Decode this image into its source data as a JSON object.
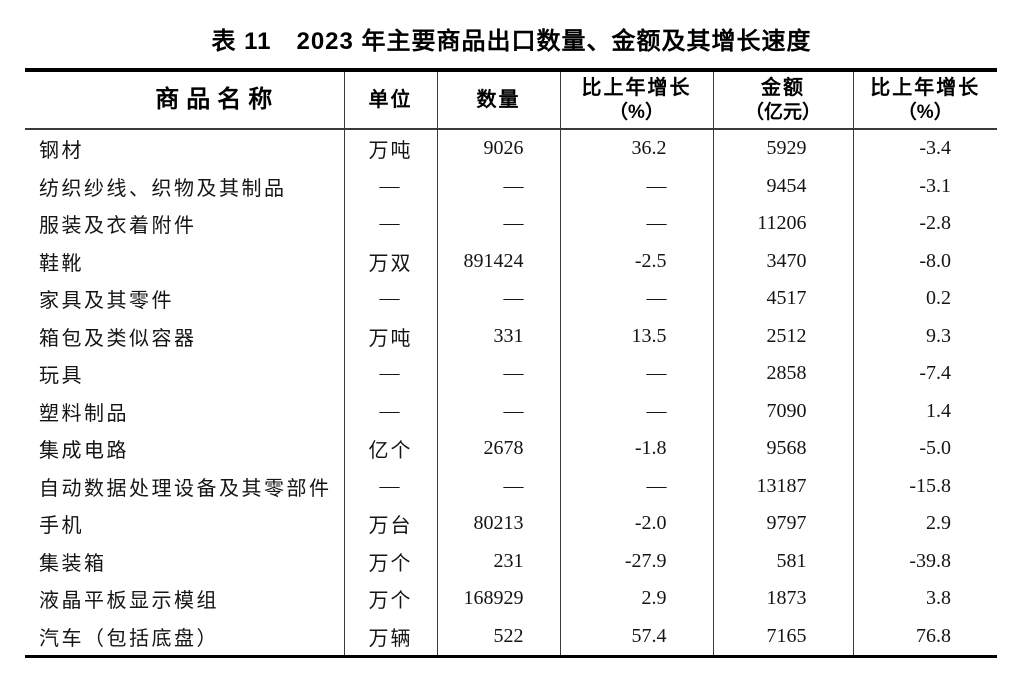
{
  "page": {
    "title": "表 11　2023 年主要商品出口数量、金额及其增长速度"
  },
  "colors": {
    "text": "#151515",
    "heavy_rule": "#000000",
    "light_rule": "#3a3a3a",
    "background": "#ffffff"
  },
  "table": {
    "placeholder": "—",
    "columns": [
      {
        "label": "商品名称"
      },
      {
        "label": "单位"
      },
      {
        "label": "数量"
      },
      {
        "label": "比上年增长",
        "sub": "（%）"
      },
      {
        "label": "金额",
        "sub": "（亿元）"
      },
      {
        "label": "比上年增长",
        "sub": "（%）"
      }
    ],
    "rows": [
      {
        "name": "钢材",
        "unit": "万吨",
        "quantity": "9026",
        "quantity_growth": "36.2",
        "amount": "5929",
        "amount_growth": "-3.4"
      },
      {
        "name": "纺织纱线、织物及其制品",
        "unit": "—",
        "quantity": "—",
        "quantity_growth": "—",
        "amount": "9454",
        "amount_growth": "-3.1"
      },
      {
        "name": "服装及衣着附件",
        "unit": "—",
        "quantity": "—",
        "quantity_growth": "—",
        "amount": "11206",
        "amount_growth": "-2.8"
      },
      {
        "name": "鞋靴",
        "unit": "万双",
        "quantity": "891424",
        "quantity_growth": "-2.5",
        "amount": "3470",
        "amount_growth": "-8.0"
      },
      {
        "name": "家具及其零件",
        "unit": "—",
        "quantity": "—",
        "quantity_growth": "—",
        "amount": "4517",
        "amount_growth": "0.2"
      },
      {
        "name": "箱包及类似容器",
        "unit": "万吨",
        "quantity": "331",
        "quantity_growth": "13.5",
        "amount": "2512",
        "amount_growth": "9.3"
      },
      {
        "name": "玩具",
        "unit": "—",
        "quantity": "—",
        "quantity_growth": "—",
        "amount": "2858",
        "amount_growth": "-7.4"
      },
      {
        "name": "塑料制品",
        "unit": "—",
        "quantity": "—",
        "quantity_growth": "—",
        "amount": "7090",
        "amount_growth": "1.4"
      },
      {
        "name": "集成电路",
        "unit": "亿个",
        "quantity": "2678",
        "quantity_growth": "-1.8",
        "amount": "9568",
        "amount_growth": "-5.0"
      },
      {
        "name": "自动数据处理设备及其零部件",
        "unit": "—",
        "quantity": "—",
        "quantity_growth": "—",
        "amount": "13187",
        "amount_growth": "-15.8"
      },
      {
        "name": "手机",
        "unit": "万台",
        "quantity": "80213",
        "quantity_growth": "-2.0",
        "amount": "9797",
        "amount_growth": "2.9"
      },
      {
        "name": "集装箱",
        "unit": "万个",
        "quantity": "231",
        "quantity_growth": "-27.9",
        "amount": "581",
        "amount_growth": "-39.8"
      },
      {
        "name": "液晶平板显示模组",
        "unit": "万个",
        "quantity": "168929",
        "quantity_growth": "2.9",
        "amount": "1873",
        "amount_growth": "3.8"
      },
      {
        "name": "汽车（包括底盘）",
        "unit": "万辆",
        "quantity": "522",
        "quantity_growth": "57.4",
        "amount": "7165",
        "amount_growth": "76.8"
      }
    ]
  }
}
